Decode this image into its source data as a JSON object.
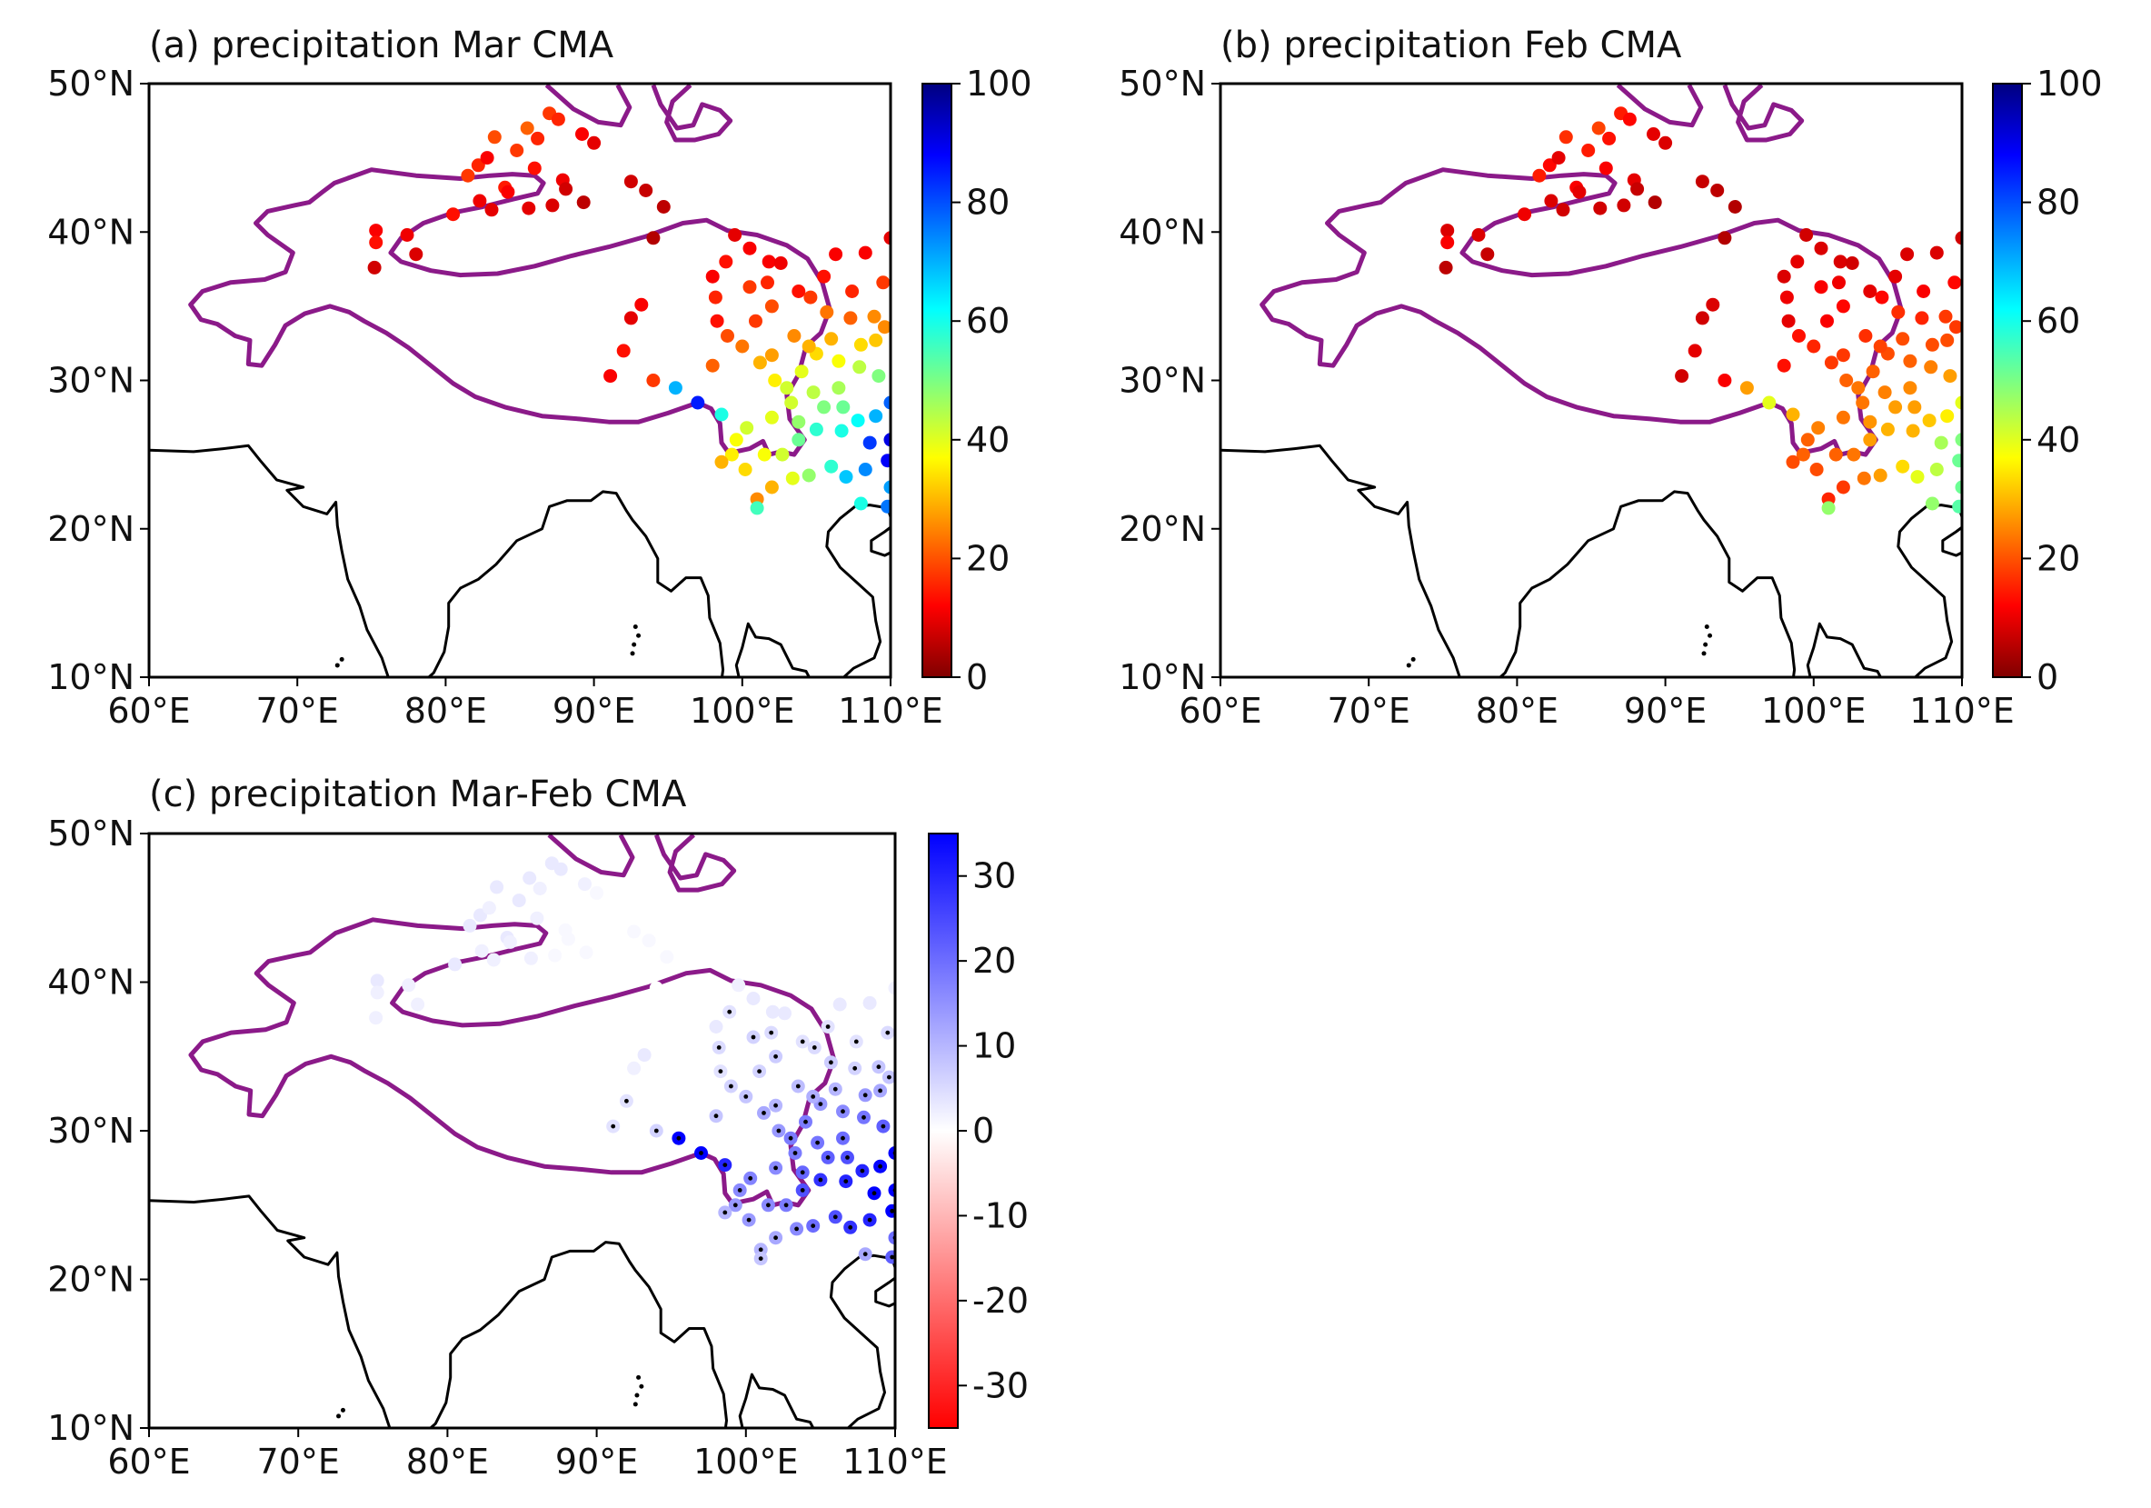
{
  "figure": {
    "panels": [
      {
        "id": "a",
        "title": "(a) precipitation Mar CMA",
        "colormap": "jet_r",
        "colorbar": {
          "min": 0,
          "max": 100,
          "ticks": [
            0,
            20,
            40,
            60,
            80,
            100
          ]
        },
        "stippled": false
      },
      {
        "id": "b",
        "title": "(b) precipitation Feb CMA",
        "colormap": "jet_r",
        "colorbar": {
          "min": 0,
          "max": 100,
          "ticks": [
            0,
            20,
            40,
            60,
            80,
            100
          ]
        },
        "stippled": false
      },
      {
        "id": "c",
        "title": "(c) precipitation Mar-Feb CMA",
        "colormap": "bwr_r",
        "colorbar": {
          "min": -35,
          "max": 35,
          "ticks": [
            -30,
            -20,
            -10,
            0,
            10,
            20,
            30
          ]
        },
        "stippled": true
      }
    ],
    "x_ticks": [
      "60°E",
      "70°E",
      "80°E",
      "90°E",
      "100°E",
      "110°E"
    ],
    "y_ticks": [
      "10°N",
      "20°N",
      "30°N",
      "40°N",
      "50°N"
    ],
    "colors": {
      "boundary": "#8b1a89",
      "coastline": "#000000",
      "stipple": "#000000"
    }
  },
  "chart_data": [
    {
      "type": "scatter",
      "title": "(a) precipitation Mar CMA",
      "xlim": [
        60,
        110
      ],
      "ylim": [
        10,
        50
      ],
      "xlabel": "",
      "ylabel": "",
      "value_range": [
        0,
        100
      ],
      "note": "station values, approximated from colour"
    },
    {
      "type": "scatter",
      "title": "(b) precipitation Feb CMA",
      "xlim": [
        60,
        110
      ],
      "ylim": [
        10,
        50
      ],
      "xlabel": "",
      "ylabel": "",
      "value_range": [
        0,
        100
      ],
      "note": "station values, approximated from colour"
    },
    {
      "type": "scatter",
      "title": "(c) precipitation Mar-Feb CMA",
      "xlim": [
        60,
        110
      ],
      "ylim": [
        10,
        50
      ],
      "xlabel": "",
      "ylabel": "",
      "value_range": [
        -35,
        35
      ],
      "note": "difference Mar minus Feb; black dots mark significant stations"
    }
  ],
  "stations": [
    [
      75.3,
      40.1,
      12,
      9
    ],
    [
      75.3,
      39.3,
      14,
      12
    ],
    [
      75.2,
      37.6,
      8,
      6
    ],
    [
      77.4,
      39.8,
      11,
      9
    ],
    [
      78.0,
      38.5,
      9,
      7
    ],
    [
      80.5,
      41.2,
      14,
      11
    ],
    [
      81.5,
      43.8,
      18,
      15
    ],
    [
      82.2,
      44.5,
      16,
      13
    ],
    [
      82.8,
      45.0,
      12,
      10
    ],
    [
      83.3,
      46.4,
      20,
      17
    ],
    [
      84.0,
      43.0,
      15,
      12
    ],
    [
      84.8,
      45.5,
      18,
      15
    ],
    [
      85.5,
      47.0,
      22,
      19
    ],
    [
      86.2,
      46.3,
      16,
      14
    ],
    [
      87.0,
      48.0,
      18,
      15
    ],
    [
      87.6,
      47.6,
      16,
      13
    ],
    [
      87.9,
      43.5,
      11,
      10
    ],
    [
      87.2,
      41.8,
      9,
      8
    ],
    [
      85.6,
      41.6,
      10,
      8
    ],
    [
      84.2,
      42.7,
      12,
      10
    ],
    [
      83.1,
      41.5,
      10,
      8
    ],
    [
      82.3,
      42.1,
      11,
      9
    ],
    [
      86.0,
      44.3,
      14,
      12
    ],
    [
      88.1,
      42.9,
      8,
      7
    ],
    [
      89.2,
      46.6,
      12,
      10
    ],
    [
      90.0,
      46.0,
      10,
      9
    ],
    [
      89.3,
      42.0,
      6,
      5
    ],
    [
      92.5,
      43.4,
      8,
      7
    ],
    [
      93.5,
      42.8,
      7,
      6
    ],
    [
      94.0,
      39.6,
      5,
      5
    ],
    [
      94.7,
      41.7,
      6,
      5
    ],
    [
      92.5,
      34.2,
      10,
      8
    ],
    [
      93.2,
      35.1,
      12,
      9
    ],
    [
      91.1,
      30.3,
      12,
      8
    ],
    [
      92.0,
      32.0,
      14,
      10
    ],
    [
      94.0,
      30.0,
      18,
      12
    ],
    [
      95.5,
      29.5,
      70,
      28
    ],
    [
      97.0,
      28.5,
      85,
      40
    ],
    [
      98.6,
      27.7,
      60,
      30
    ],
    [
      98.0,
      31.0,
      22,
      14
    ],
    [
      98.3,
      34.0,
      14,
      10
    ],
    [
      98.2,
      35.6,
      16,
      11
    ],
    [
      98.0,
      37.0,
      12,
      9
    ],
    [
      98.9,
      38.0,
      14,
      10
    ],
    [
      99.5,
      39.8,
      10,
      8
    ],
    [
      100.5,
      38.9,
      12,
      9
    ],
    [
      101.8,
      38.0,
      12,
      9
    ],
    [
      102.6,
      37.9,
      11,
      8
    ],
    [
      103.8,
      36.0,
      14,
      10
    ],
    [
      101.7,
      36.6,
      16,
      11
    ],
    [
      100.5,
      36.3,
      18,
      12
    ],
    [
      102.0,
      35.0,
      20,
      13
    ],
    [
      104.6,
      35.6,
      18,
      13
    ],
    [
      105.7,
      34.6,
      24,
      17
    ],
    [
      106.0,
      32.8,
      30,
      20
    ],
    [
      107.3,
      34.2,
      22,
      16
    ],
    [
      108.9,
      34.3,
      26,
      18
    ],
    [
      109.5,
      36.6,
      18,
      13
    ],
    [
      108.3,
      38.6,
      12,
      9
    ],
    [
      106.3,
      38.5,
      12,
      9
    ],
    [
      110.0,
      39.6,
      10,
      8
    ],
    [
      99.0,
      33.0,
      20,
      14
    ],
    [
      100.0,
      32.3,
      24,
      16
    ],
    [
      101.2,
      31.2,
      30,
      18
    ],
    [
      102.2,
      30.0,
      36,
      22
    ],
    [
      103.0,
      29.5,
      42,
      24
    ],
    [
      104.0,
      30.6,
      40,
      22
    ],
    [
      105.0,
      31.8,
      34,
      20
    ],
    [
      106.5,
      31.3,
      38,
      22
    ],
    [
      107.9,
      30.9,
      44,
      25
    ],
    [
      109.2,
      30.3,
      50,
      28
    ],
    [
      109.0,
      32.7,
      32,
      20
    ],
    [
      106.5,
      29.5,
      46,
      26
    ],
    [
      104.8,
      29.2,
      44,
      25
    ],
    [
      103.3,
      28.5,
      42,
      24
    ],
    [
      102.0,
      27.5,
      40,
      24
    ],
    [
      100.3,
      26.8,
      42,
      25
    ],
    [
      101.5,
      25.0,
      38,
      22
    ],
    [
      102.7,
      25.0,
      42,
      24
    ],
    [
      103.8,
      26.0,
      52,
      28
    ],
    [
      105.0,
      26.7,
      58,
      30
    ],
    [
      106.7,
      26.6,
      60,
      30
    ],
    [
      107.8,
      27.3,
      62,
      32
    ],
    [
      109.0,
      27.6,
      70,
      36
    ],
    [
      110.0,
      28.5,
      78,
      40
    ],
    [
      108.6,
      25.8,
      82,
      46
    ],
    [
      110.0,
      26.0,
      90,
      50
    ],
    [
      109.8,
      24.6,
      88,
      52
    ],
    [
      108.3,
      24.0,
      74,
      44
    ],
    [
      107.0,
      23.5,
      68,
      40
    ],
    [
      106.0,
      24.2,
      58,
      34
    ],
    [
      104.5,
      23.6,
      48,
      28
    ],
    [
      103.4,
      23.4,
      40,
      24
    ],
    [
      102.0,
      22.8,
      30,
      18
    ],
    [
      101.0,
      22.0,
      26,
      16
    ],
    [
      100.2,
      24.0,
      34,
      20
    ],
    [
      99.3,
      25.0,
      36,
      22
    ],
    [
      98.6,
      24.5,
      30,
      20
    ],
    [
      99.6,
      26.0,
      38,
      22
    ],
    [
      101.0,
      21.4,
      56,
      48
    ],
    [
      108.0,
      21.7,
      60,
      48
    ],
    [
      109.8,
      21.5,
      76,
      54
    ],
    [
      110.0,
      22.8,
      72,
      52
    ],
    [
      103.5,
      33.0,
      26,
      17
    ],
    [
      100.9,
      34.0,
      18,
      12
    ],
    [
      104.5,
      32.3,
      30,
      19
    ],
    [
      108.0,
      32.4,
      34,
      20
    ],
    [
      106.8,
      28.2,
      52,
      28
    ],
    [
      102.0,
      31.7,
      28,
      18
    ],
    [
      103.8,
      27.2,
      48,
      27
    ],
    [
      105.5,
      28.2,
      50,
      28
    ],
    [
      109.6,
      33.6,
      26,
      18
    ],
    [
      107.4,
      36.0,
      16,
      12
    ],
    [
      105.5,
      37.0,
      14,
      10
    ]
  ],
  "boundary": [
    [
      72.5,
      43.3
    ],
    [
      75.0,
      44.2
    ],
    [
      78.0,
      43.8
    ],
    [
      81.0,
      43.6
    ],
    [
      83.0,
      43.8
    ],
    [
      84.5,
      43.9
    ],
    [
      86.0,
      43.8
    ],
    [
      86.6,
      43.3
    ],
    [
      86.2,
      42.6
    ],
    [
      84.5,
      42.2
    ],
    [
      82.5,
      41.7
    ],
    [
      80.5,
      41.3
    ],
    [
      78.5,
      40.6
    ],
    [
      77.0,
      39.6
    ],
    [
      76.3,
      38.6
    ],
    [
      77.0,
      38.0
    ],
    [
      79.0,
      37.4
    ],
    [
      81.0,
      37.1
    ],
    [
      83.5,
      37.2
    ],
    [
      86.0,
      37.7
    ],
    [
      88.5,
      38.4
    ],
    [
      91.0,
      39.0
    ],
    [
      93.5,
      39.7
    ],
    [
      96.0,
      40.6
    ],
    [
      97.6,
      40.8
    ],
    [
      99.0,
      40.1
    ],
    [
      101.0,
      39.8
    ],
    [
      103.0,
      39.1
    ],
    [
      104.4,
      38.2
    ],
    [
      105.4,
      36.6
    ],
    [
      105.9,
      34.8
    ],
    [
      105.3,
      33.2
    ],
    [
      104.3,
      32.3
    ],
    [
      103.8,
      30.4
    ],
    [
      103.0,
      29.0
    ],
    [
      103.2,
      27.4
    ],
    [
      104.2,
      26.0
    ],
    [
      103.5,
      25.0
    ],
    [
      102.6,
      25.2
    ],
    [
      101.8,
      25.0
    ],
    [
      101.4,
      25.9
    ],
    [
      100.5,
      25.4
    ],
    [
      99.1,
      25.1
    ],
    [
      98.6,
      25.8
    ],
    [
      98.5,
      27.1
    ],
    [
      97.9,
      28.1
    ],
    [
      97.0,
      28.5
    ],
    [
      95.0,
      27.8
    ],
    [
      93.0,
      27.2
    ],
    [
      91.0,
      27.2
    ],
    [
      89.0,
      27.4
    ],
    [
      86.5,
      27.6
    ],
    [
      84.0,
      28.2
    ],
    [
      82.0,
      28.9
    ],
    [
      80.5,
      29.8
    ],
    [
      79.0,
      31.0
    ],
    [
      77.5,
      32.2
    ],
    [
      76.0,
      33.2
    ],
    [
      74.5,
      34.0
    ],
    [
      73.5,
      34.6
    ],
    [
      72.2,
      35.0
    ],
    [
      70.5,
      34.5
    ],
    [
      69.2,
      33.7
    ],
    [
      68.5,
      32.4
    ],
    [
      67.6,
      31.0
    ],
    [
      66.7,
      31.1
    ],
    [
      66.8,
      32.7
    ],
    [
      65.8,
      33.0
    ],
    [
      64.6,
      33.8
    ],
    [
      63.5,
      34.1
    ],
    [
      62.8,
      35.1
    ],
    [
      63.6,
      36.0
    ],
    [
      65.5,
      36.6
    ],
    [
      67.8,
      36.8
    ],
    [
      69.2,
      37.3
    ],
    [
      69.7,
      38.6
    ],
    [
      68.0,
      39.8
    ],
    [
      67.2,
      40.6
    ],
    [
      68.0,
      41.4
    ],
    [
      69.8,
      41.8
    ],
    [
      70.8,
      42.0
    ],
    [
      71.7,
      42.7
    ],
    [
      72.5,
      43.3
    ]
  ],
  "boundary_north": [
    [
      86.8,
      49.9
    ],
    [
      88.6,
      48.3
    ],
    [
      90.3,
      47.4
    ],
    [
      91.8,
      47.2
    ],
    [
      92.4,
      48.4
    ],
    [
      91.6,
      49.9
    ]
  ],
  "boundary_north2": [
    [
      94.0,
      49.9
    ],
    [
      94.5,
      48.6
    ],
    [
      95.6,
      47.0
    ],
    [
      96.7,
      47.2
    ],
    [
      97.3,
      48.6
    ],
    [
      98.5,
      48.2
    ],
    [
      99.2,
      47.5
    ],
    [
      98.4,
      46.6
    ],
    [
      96.8,
      46.2
    ],
    [
      95.5,
      46.2
    ],
    [
      94.9,
      47.4
    ],
    [
      95.3,
      48.8
    ],
    [
      96.5,
      49.9
    ]
  ],
  "coast_main": [
    [
      60,
      25.3
    ],
    [
      63,
      25.2
    ],
    [
      65,
      25.4
    ],
    [
      66.7,
      25.6
    ],
    [
      67.5,
      24.6
    ],
    [
      68.6,
      23.3
    ],
    [
      70.4,
      22.8
    ],
    [
      69.3,
      22.6
    ],
    [
      70.4,
      21.5
    ],
    [
      72.0,
      21.0
    ],
    [
      72.6,
      21.8
    ],
    [
      72.7,
      20.2
    ],
    [
      73.0,
      18.5
    ],
    [
      73.4,
      16.6
    ],
    [
      74.2,
      14.8
    ],
    [
      74.7,
      13.2
    ],
    [
      75.7,
      11.3
    ],
    [
      76.3,
      9.5
    ],
    [
      77.2,
      8.1
    ],
    [
      78.0,
      8.5
    ],
    [
      78.3,
      9.5
    ],
    [
      79.2,
      10.3
    ],
    [
      79.9,
      11.7
    ],
    [
      80.2,
      13.4
    ],
    [
      80.2,
      15.0
    ],
    [
      81.0,
      16.0
    ],
    [
      82.2,
      16.6
    ],
    [
      83.4,
      17.6
    ],
    [
      84.8,
      19.2
    ],
    [
      86.5,
      20.0
    ],
    [
      87.0,
      21.5
    ],
    [
      88.2,
      21.9
    ],
    [
      89.0,
      21.9
    ],
    [
      89.8,
      21.9
    ],
    [
      90.6,
      22.5
    ],
    [
      91.5,
      22.4
    ],
    [
      92.2,
      21.2
    ],
    [
      92.6,
      20.6
    ],
    [
      93.5,
      19.5
    ],
    [
      94.3,
      18.0
    ],
    [
      94.3,
      16.4
    ],
    [
      95.2,
      15.8
    ],
    [
      96.2,
      16.7
    ],
    [
      97.2,
      16.7
    ],
    [
      97.7,
      15.5
    ],
    [
      97.8,
      14.0
    ],
    [
      98.5,
      12.3
    ],
    [
      98.7,
      10.5
    ],
    [
      98.4,
      8.3
    ],
    [
      98.7,
      7.6
    ],
    [
      99.6,
      7.0
    ],
    [
      100.3,
      6.4
    ],
    [
      100.8,
      6.2
    ],
    [
      101.5,
      6.8
    ],
    [
      101.0,
      7.6
    ],
    [
      100.4,
      8.6
    ],
    [
      99.9,
      9.4
    ],
    [
      99.6,
      10.8
    ],
    [
      100.0,
      12.0
    ],
    [
      100.4,
      13.6
    ],
    [
      100.9,
      12.7
    ],
    [
      101.8,
      12.6
    ],
    [
      102.6,
      12.2
    ],
    [
      103.4,
      10.6
    ],
    [
      104.3,
      10.4
    ],
    [
      105.2,
      8.7
    ],
    [
      106.3,
      9.5
    ],
    [
      107.5,
      10.6
    ],
    [
      108.9,
      11.3
    ],
    [
      109.3,
      12.4
    ],
    [
      109.0,
      13.8
    ],
    [
      108.8,
      15.4
    ],
    [
      107.7,
      16.4
    ],
    [
      106.6,
      17.4
    ],
    [
      105.7,
      18.8
    ],
    [
      105.8,
      19.8
    ],
    [
      106.6,
      20.7
    ],
    [
      107.6,
      21.5
    ],
    [
      108.6,
      21.6
    ],
    [
      109.8,
      21.4
    ],
    [
      110,
      20.8
    ]
  ],
  "coast_hainan": [
    [
      110,
      20.1
    ],
    [
      109.6,
      19.8
    ],
    [
      108.7,
      19.2
    ],
    [
      108.7,
      18.5
    ],
    [
      109.6,
      18.2
    ],
    [
      110,
      18.4
    ]
  ]
}
